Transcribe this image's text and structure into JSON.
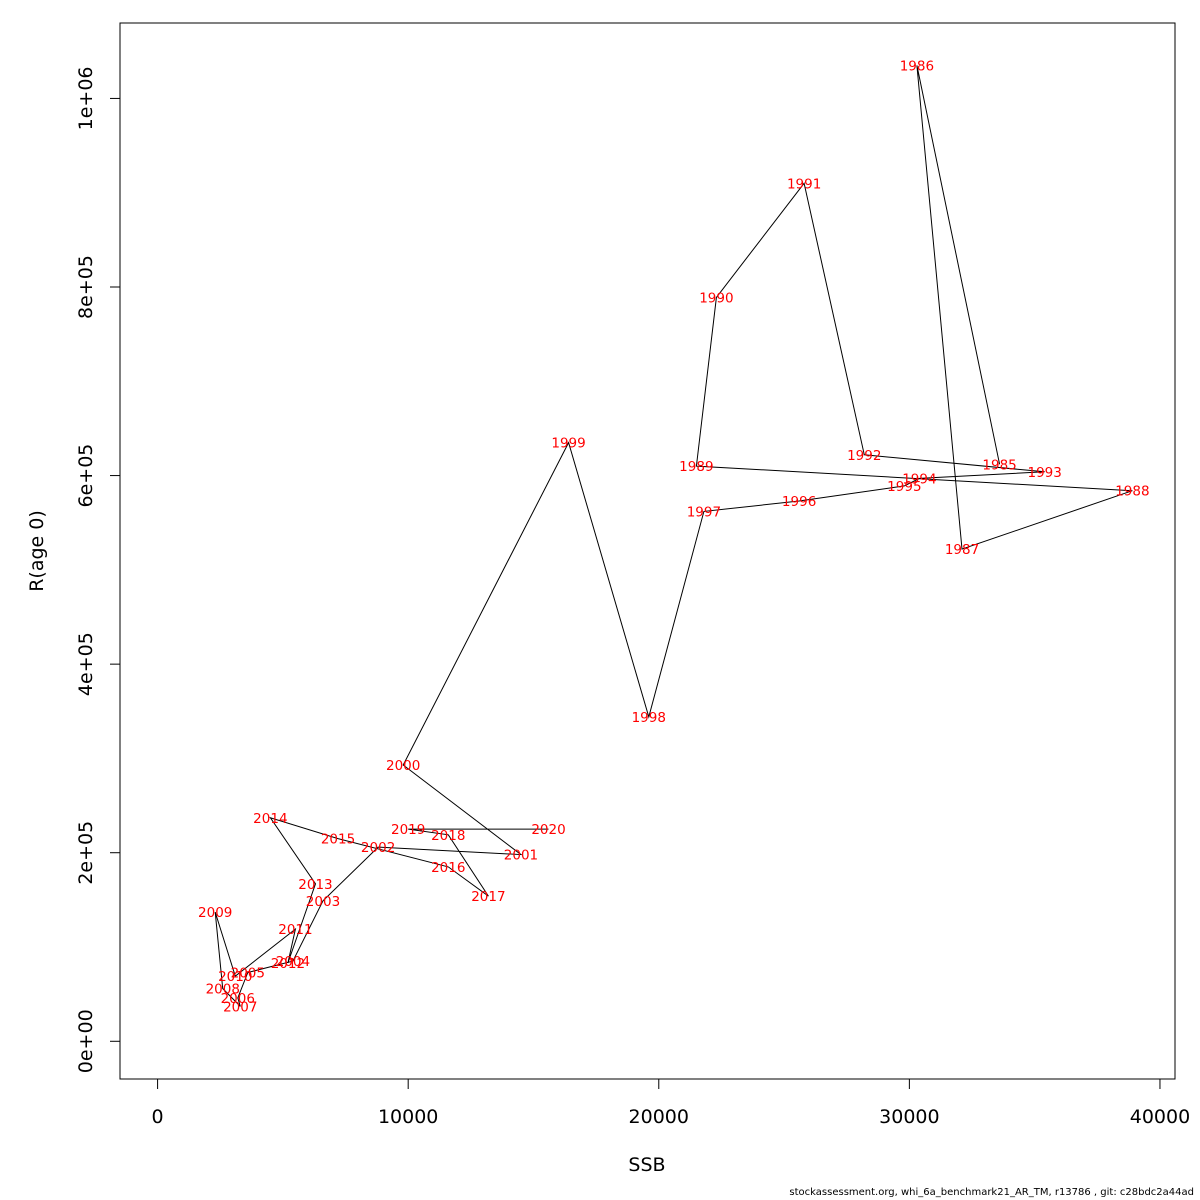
{
  "chart_data": {
    "type": "scatter",
    "connected": true,
    "xlabel": "SSB",
    "ylabel": "R(age 0)",
    "xlim": [
      -1500,
      40600
    ],
    "ylim": [
      -40000,
      1080000
    ],
    "xticks": [
      0,
      10000,
      20000,
      30000,
      40000
    ],
    "xtick_labels": [
      "0",
      "10000",
      "20000",
      "30000",
      "40000"
    ],
    "yticks": [
      0,
      200000,
      400000,
      600000,
      800000,
      1000000
    ],
    "ytick_labels": [
      "0e+00",
      "2e+05",
      "4e+05",
      "6e+05",
      "8e+05",
      "1e+06"
    ],
    "grid": false,
    "line_color": "#000000",
    "label_color": "#ff0000",
    "points": [
      {
        "year": "1985",
        "x": 33600,
        "y": 612000
      },
      {
        "year": "1986",
        "x": 30300,
        "y": 1035000
      },
      {
        "year": "1987",
        "x": 32100,
        "y": 522000
      },
      {
        "year": "1988",
        "x": 38900,
        "y": 584000
      },
      {
        "year": "1989",
        "x": 21500,
        "y": 610000
      },
      {
        "year": "1990",
        "x": 22300,
        "y": 789000
      },
      {
        "year": "1991",
        "x": 25800,
        "y": 910000
      },
      {
        "year": "1992",
        "x": 28200,
        "y": 622000
      },
      {
        "year": "1993",
        "x": 35400,
        "y": 604000
      },
      {
        "year": "1994",
        "x": 30400,
        "y": 597000
      },
      {
        "year": "1995",
        "x": 29800,
        "y": 589000
      },
      {
        "year": "1996",
        "x": 25600,
        "y": 573000
      },
      {
        "year": "1997",
        "x": 21800,
        "y": 562000
      },
      {
        "year": "1998",
        "x": 19600,
        "y": 344000
      },
      {
        "year": "1999",
        "x": 16400,
        "y": 635000
      },
      {
        "year": "2000",
        "x": 9800,
        "y": 293000
      },
      {
        "year": "2001",
        "x": 14500,
        "y": 198000
      },
      {
        "year": "2002",
        "x": 8800,
        "y": 206000
      },
      {
        "year": "2003",
        "x": 6600,
        "y": 149000
      },
      {
        "year": "2004",
        "x": 5400,
        "y": 85000
      },
      {
        "year": "2005",
        "x": 3600,
        "y": 73000
      },
      {
        "year": "2006",
        "x": 3200,
        "y": 46000
      },
      {
        "year": "2007",
        "x": 3300,
        "y": 37000
      },
      {
        "year": "2008",
        "x": 2600,
        "y": 56000
      },
      {
        "year": "2009",
        "x": 2300,
        "y": 137000
      },
      {
        "year": "2010",
        "x": 3100,
        "y": 69000
      },
      {
        "year": "2011",
        "x": 5500,
        "y": 119000
      },
      {
        "year": "2012",
        "x": 5200,
        "y": 83000
      },
      {
        "year": "2013",
        "x": 6300,
        "y": 167000
      },
      {
        "year": "2014",
        "x": 4500,
        "y": 237000
      },
      {
        "year": "2015",
        "x": 7200,
        "y": 215000
      },
      {
        "year": "2016",
        "x": 11600,
        "y": 185000
      },
      {
        "year": "2017",
        "x": 13200,
        "y": 154000
      },
      {
        "year": "2018",
        "x": 11600,
        "y": 219000
      },
      {
        "year": "2019",
        "x": 10000,
        "y": 225000
      },
      {
        "year": "2020",
        "x": 15600,
        "y": 225000
      }
    ]
  },
  "footer": {
    "text": "stockassessment.org, whi_6a_benchmark21_AR_TM, r13786 , git: c28bdc2a44ad"
  }
}
